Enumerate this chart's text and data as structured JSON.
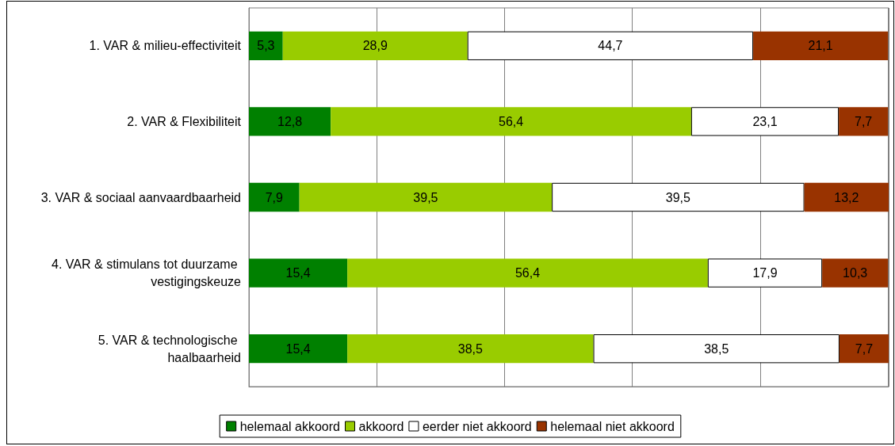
{
  "chart_data": {
    "type": "bar",
    "orientation": "horizontal",
    "stacked": true,
    "categories": [
      "1. VAR & milieu-effectiviteit",
      "2. VAR & Flexibiliteit",
      "3. VAR & sociaal aanvaardbaarheid",
      "4. VAR & stimulans tot duurzame vestigingskeuze",
      "5. VAR & technologische haalbaarheid"
    ],
    "series": [
      {
        "name": "helemaal akkoord",
        "color": "#008000",
        "values": [
          5.3,
          12.8,
          7.9,
          15.4,
          15.4
        ],
        "value_labels": [
          "5,3",
          "12,8",
          "7,9",
          "15,4",
          "15,4"
        ]
      },
      {
        "name": "akkoord",
        "color": "#99cc00",
        "values": [
          28.9,
          56.4,
          39.5,
          56.4,
          38.5
        ],
        "value_labels": [
          "28,9",
          "56,4",
          "39,5",
          "56,4",
          "38,5"
        ]
      },
      {
        "name": "eerder niet akkoord",
        "color": "#ffffff",
        "values": [
          44.7,
          23.1,
          39.5,
          17.9,
          38.5
        ],
        "value_labels": [
          "44,7",
          "23,1",
          "39,5",
          "17,9",
          "38,5"
        ]
      },
      {
        "name": "helemaal niet akkoord",
        "color": "#993300",
        "values": [
          21.1,
          7.7,
          13.2,
          10.3,
          7.7
        ],
        "value_labels": [
          "21,1",
          "7,7",
          "13,2",
          "10,3",
          "7,7"
        ]
      }
    ],
    "tick_labels": "y",
    "grid": "x",
    "legend": "bottom"
  }
}
